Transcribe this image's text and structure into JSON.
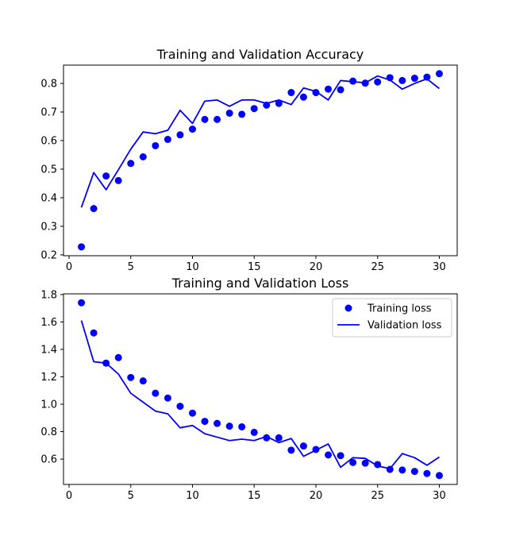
{
  "colors": {
    "series": "#0000ff",
    "axis": "#000000",
    "legend_border": "#cccccc"
  },
  "chart_data": [
    {
      "type": "line",
      "title": "Training and Validation Accuracy",
      "xlabel": "",
      "ylabel": "",
      "xlim": [
        -0.45,
        31.45
      ],
      "ylim": [
        0.197,
        0.864
      ],
      "xticks": [
        0,
        5,
        10,
        15,
        20,
        25,
        30
      ],
      "yticks": [
        0.2,
        0.3,
        0.4,
        0.5,
        0.6,
        0.7,
        0.8
      ],
      "grid": false,
      "legend": null,
      "x": [
        1,
        2,
        3,
        4,
        5,
        6,
        7,
        8,
        9,
        10,
        11,
        12,
        13,
        14,
        15,
        16,
        17,
        18,
        19,
        20,
        21,
        22,
        23,
        24,
        25,
        26,
        27,
        28,
        29,
        30
      ],
      "series": [
        {
          "style": "markers",
          "values": [
            0.228,
            0.362,
            0.476,
            0.46,
            0.52,
            0.543,
            0.582,
            0.604,
            0.62,
            0.64,
            0.674,
            0.674,
            0.696,
            0.692,
            0.712,
            0.724,
            0.73,
            0.768,
            0.752,
            0.768,
            0.78,
            0.778,
            0.808,
            0.801,
            0.805,
            0.82,
            0.81,
            0.818,
            0.822,
            0.834
          ]
        },
        {
          "style": "line",
          "values": [
            0.366,
            0.488,
            0.428,
            0.498,
            0.57,
            0.63,
            0.624,
            0.636,
            0.706,
            0.66,
            0.738,
            0.742,
            0.72,
            0.742,
            0.742,
            0.73,
            0.742,
            0.726,
            0.784,
            0.772,
            0.742,
            0.81,
            0.806,
            0.802,
            0.826,
            0.812,
            0.78,
            0.8,
            0.816,
            0.782
          ]
        }
      ]
    },
    {
      "type": "line",
      "title": "Training and Validation Loss",
      "xlabel": "",
      "ylabel": "",
      "xlim": [
        -0.45,
        31.45
      ],
      "ylim": [
        0.415,
        1.805
      ],
      "xticks": [
        0,
        5,
        10,
        15,
        20,
        25,
        30
      ],
      "yticks": [
        0.6,
        0.8,
        1.0,
        1.2,
        1.4,
        1.6,
        1.8
      ],
      "grid": false,
      "legend": "top-right",
      "x": [
        1,
        2,
        3,
        4,
        5,
        6,
        7,
        8,
        9,
        10,
        11,
        12,
        13,
        14,
        15,
        16,
        17,
        18,
        19,
        20,
        21,
        22,
        23,
        24,
        25,
        26,
        27,
        28,
        29,
        30
      ],
      "series": [
        {
          "name": "Training loss",
          "style": "markers",
          "values": [
            1.74,
            1.52,
            1.3,
            1.34,
            1.195,
            1.17,
            1.08,
            1.045,
            0.985,
            0.935,
            0.875,
            0.86,
            0.84,
            0.835,
            0.795,
            0.755,
            0.755,
            0.665,
            0.695,
            0.67,
            0.63,
            0.625,
            0.575,
            0.57,
            0.56,
            0.525,
            0.52,
            0.51,
            0.495,
            0.48
          ]
        },
        {
          "name": "Validation loss",
          "style": "line",
          "values": [
            1.61,
            1.31,
            1.3,
            1.22,
            1.08,
            1.015,
            0.95,
            0.93,
            0.828,
            0.845,
            0.785,
            0.76,
            0.735,
            0.745,
            0.735,
            0.765,
            0.72,
            0.75,
            0.62,
            0.665,
            0.71,
            0.54,
            0.61,
            0.605,
            0.55,
            0.53,
            0.64,
            0.61,
            0.555,
            0.615
          ]
        }
      ]
    }
  ]
}
